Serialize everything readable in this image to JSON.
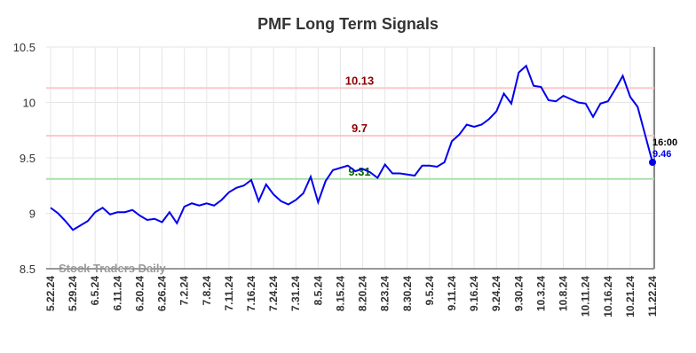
{
  "chart_data": {
    "type": "line",
    "title": "PMF Long Term Signals",
    "watermark": "Stock Traders Daily",
    "categories": [
      "5.22.24",
      null,
      null,
      "5.29.24",
      null,
      null,
      "6.5.24",
      null,
      null,
      "6.11.24",
      null,
      null,
      "6.20.24",
      null,
      null,
      "6.26.24",
      null,
      null,
      "7.2.24",
      null,
      null,
      "7.8.24",
      null,
      null,
      "7.11.24",
      null,
      null,
      "7.16.24",
      null,
      null,
      "7.24.24",
      null,
      null,
      "7.31.24",
      null,
      null,
      "8.5.24",
      null,
      null,
      "8.15.24",
      null,
      null,
      "8.20.24",
      null,
      null,
      "8.23.24",
      null,
      null,
      "8.30.24",
      null,
      null,
      "9.5.24",
      null,
      null,
      "9.11.24",
      null,
      null,
      "9.16.24",
      null,
      null,
      "9.24.24",
      null,
      null,
      "9.30.24",
      null,
      null,
      "10.3.24",
      null,
      null,
      "10.8.24",
      null,
      null,
      "10.11.24",
      null,
      null,
      "10.16.24",
      null,
      null,
      "10.21.24",
      null,
      null,
      "11.22.24"
    ],
    "series": [
      {
        "name": "PMF",
        "color": "#0000ee",
        "values": [
          9.05,
          9.0,
          8.93,
          8.85,
          8.89,
          8.93,
          9.01,
          9.05,
          8.99,
          9.01,
          9.01,
          9.03,
          8.98,
          8.94,
          8.95,
          8.92,
          9.01,
          8.91,
          9.06,
          9.09,
          9.07,
          9.09,
          9.07,
          9.12,
          9.19,
          9.23,
          9.25,
          9.3,
          9.11,
          9.26,
          9.17,
          9.11,
          9.08,
          9.12,
          9.18,
          9.33,
          9.1,
          9.29,
          9.39,
          9.41,
          9.43,
          9.38,
          9.4,
          9.37,
          9.32,
          9.44,
          9.36,
          9.36,
          9.35,
          9.34,
          9.43,
          9.43,
          9.42,
          9.46,
          9.65,
          9.71,
          9.8,
          9.78,
          9.8,
          9.85,
          9.92,
          10.08,
          9.99,
          10.27,
          10.33,
          10.15,
          10.14,
          10.02,
          10.01,
          10.06,
          10.03,
          10.0,
          9.99,
          9.87,
          9.99,
          10.01,
          10.12,
          10.24,
          10.05,
          9.96,
          9.71,
          9.46
        ]
      }
    ],
    "last_point_time": "16:00",
    "reference_lines": [
      {
        "value": 10.13,
        "color": "#ffc8c8",
        "label_color": "#8b0000"
      },
      {
        "value": 9.7,
        "color": "#ffc8c8",
        "label_color": "#8b0000"
      },
      {
        "value": 9.31,
        "color": "#a8e0a8",
        "label_color": "#006400"
      }
    ],
    "ylim": [
      8.5,
      10.5
    ],
    "yticks": [
      8.5,
      9,
      9.5,
      10,
      10.5
    ],
    "grid": true
  }
}
